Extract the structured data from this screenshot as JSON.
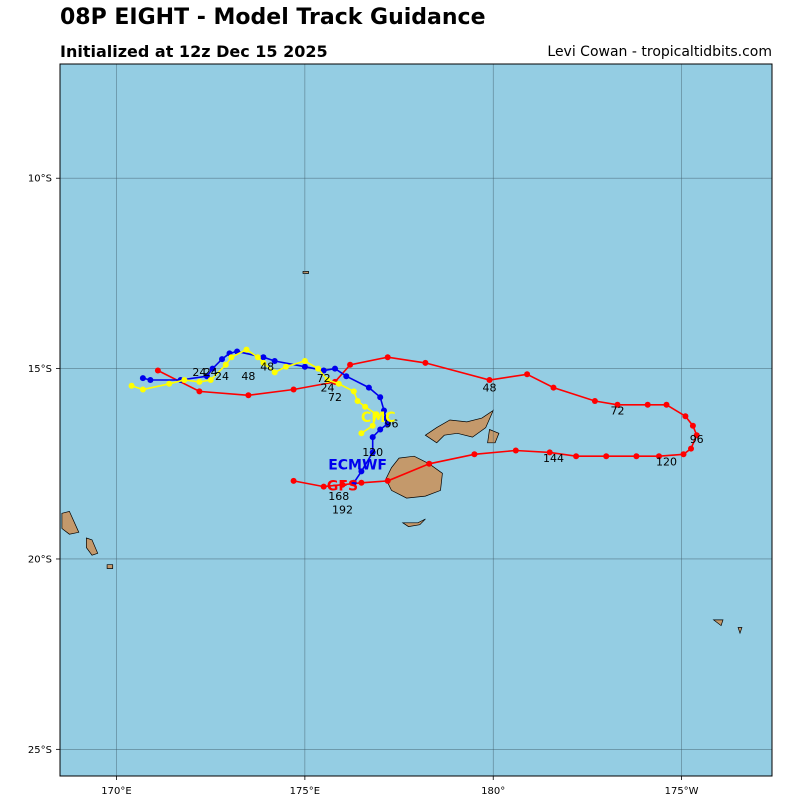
{
  "header": {
    "title": "08P EIGHT - Model Track Guidance",
    "subtitle": "Initialized at 12z Dec 15 2025",
    "credit": "Levi Cowan - tropicaltidbits.com"
  },
  "colors": {
    "ocean": "#94cde3",
    "land": "#c4996b",
    "grid": "#3d5a66",
    "gfs": "#ff0000",
    "ecmwf": "#0000ee",
    "cmc": "#ffff00"
  },
  "map": {
    "lon_range": [
      168.5,
      187.4
    ],
    "lat_range": [
      -25.7,
      -7.0
    ],
    "lon_ticks": [
      {
        "value": 170,
        "label": "170°E"
      },
      {
        "value": 175,
        "label": "175°E"
      },
      {
        "value": 180,
        "label": "180°"
      },
      {
        "value": 185,
        "label": "175°W"
      }
    ],
    "lat_ticks": [
      {
        "value": -10,
        "label": "10°S"
      },
      {
        "value": -15,
        "label": "15°S"
      },
      {
        "value": -20,
        "label": "20°S"
      },
      {
        "value": -25,
        "label": "25°S"
      }
    ],
    "islands": [
      {
        "name": "viti-levu",
        "points": [
          [
            177.3,
            -17.6
          ],
          [
            177.5,
            -17.35
          ],
          [
            177.9,
            -17.3
          ],
          [
            178.3,
            -17.5
          ],
          [
            178.65,
            -17.75
          ],
          [
            178.6,
            -18.2
          ],
          [
            178.2,
            -18.35
          ],
          [
            177.7,
            -18.4
          ],
          [
            177.3,
            -18.2
          ],
          [
            177.15,
            -17.9
          ]
        ]
      },
      {
        "name": "vanua-levu",
        "points": [
          [
            178.2,
            -16.75
          ],
          [
            178.5,
            -16.55
          ],
          [
            178.85,
            -16.35
          ],
          [
            179.3,
            -16.4
          ],
          [
            179.7,
            -16.3
          ],
          [
            180.0,
            -16.1
          ],
          [
            179.8,
            -16.55
          ],
          [
            179.45,
            -16.8
          ],
          [
            179.05,
            -16.7
          ],
          [
            178.7,
            -16.75
          ],
          [
            178.5,
            -16.95
          ]
        ]
      },
      {
        "name": "taveuni",
        "points": [
          [
            179.9,
            -16.6
          ],
          [
            180.15,
            -16.7
          ],
          [
            180.05,
            -16.95
          ],
          [
            179.85,
            -16.95
          ]
        ]
      },
      {
        "name": "kadavu",
        "points": [
          [
            177.6,
            -19.05
          ],
          [
            178.0,
            -19.05
          ],
          [
            178.2,
            -18.95
          ],
          [
            178.05,
            -19.1
          ],
          [
            177.75,
            -19.15
          ]
        ]
      },
      {
        "name": "vanuatu-1",
        "points": [
          [
            168.55,
            -18.8
          ],
          [
            168.75,
            -18.75
          ],
          [
            169.0,
            -19.3
          ],
          [
            168.75,
            -19.35
          ],
          [
            168.55,
            -19.2
          ]
        ]
      },
      {
        "name": "vanuatu-2",
        "points": [
          [
            169.2,
            -19.45
          ],
          [
            169.35,
            -19.5
          ],
          [
            169.5,
            -19.85
          ],
          [
            169.35,
            -19.9
          ],
          [
            169.2,
            -19.7
          ]
        ]
      },
      {
        "name": "vanuatu-3",
        "points": [
          [
            169.75,
            -20.15
          ],
          [
            169.9,
            -20.15
          ],
          [
            169.9,
            -20.25
          ],
          [
            169.75,
            -20.25
          ]
        ]
      },
      {
        "name": "ono-i-lau",
        "points": [
          [
            185.85,
            -21.6
          ],
          [
            186.1,
            -21.6
          ],
          [
            186.05,
            -21.75
          ]
        ]
      },
      {
        "name": "vava-u",
        "points": [
          [
            186.5,
            -21.8
          ],
          [
            186.6,
            -21.8
          ],
          [
            186.55,
            -21.95
          ]
        ]
      },
      {
        "name": "rotuma",
        "points": [
          [
            174.95,
            -12.45
          ],
          [
            175.1,
            -12.45
          ],
          [
            175.1,
            -12.5
          ],
          [
            174.95,
            -12.5
          ]
        ]
      }
    ]
  },
  "chart_data": {
    "type": "scatter",
    "title": "08P EIGHT - Model Track Guidance",
    "subtitle": "Initialized at 12z Dec 15 2025",
    "series": [
      {
        "name": "GFS",
        "color": "#ff0000",
        "label_pos": [
          176.0,
          -18.2
        ],
        "points": [
          [
            171.1,
            -15.05
          ],
          [
            172.2,
            -15.6
          ],
          [
            173.5,
            -15.7
          ],
          [
            174.7,
            -15.55
          ],
          [
            175.8,
            -15.35
          ],
          [
            176.2,
            -14.9
          ],
          [
            177.2,
            -14.7
          ],
          [
            178.2,
            -14.85
          ],
          [
            179.9,
            -15.3
          ],
          [
            180.9,
            -15.15
          ],
          [
            181.6,
            -15.5
          ],
          [
            182.7,
            -15.85
          ],
          [
            183.3,
            -15.95
          ],
          [
            184.1,
            -15.95
          ],
          [
            184.6,
            -15.95
          ],
          [
            185.1,
            -16.25
          ],
          [
            185.3,
            -16.5
          ],
          [
            185.4,
            -16.75
          ],
          [
            185.25,
            -17.1
          ],
          [
            185.05,
            -17.25
          ],
          [
            184.4,
            -17.3
          ],
          [
            183.8,
            -17.3
          ],
          [
            183.0,
            -17.3
          ],
          [
            182.2,
            -17.3
          ],
          [
            181.5,
            -17.2
          ],
          [
            180.6,
            -17.15
          ],
          [
            179.5,
            -17.25
          ],
          [
            178.3,
            -17.5
          ],
          [
            177.2,
            -17.95
          ],
          [
            176.5,
            -18.0
          ],
          [
            176.0,
            -18.05
          ],
          [
            175.5,
            -18.1
          ],
          [
            174.7,
            -17.95
          ]
        ],
        "hour_labels": [
          {
            "text": "24",
            "pos": [
              172.8,
              -15.3
            ]
          },
          {
            "text": "48",
            "pos": [
              179.9,
              -15.6
            ]
          },
          {
            "text": "72",
            "pos": [
              183.3,
              -16.2
            ]
          },
          {
            "text": "96",
            "pos": [
              185.4,
              -16.95
            ]
          },
          {
            "text": "120",
            "pos": [
              184.6,
              -17.55
            ]
          },
          {
            "text": "144",
            "pos": [
              181.6,
              -17.45
            ]
          },
          {
            "text": "168",
            "pos": [
              175.9,
              -18.45
            ]
          },
          {
            "text": "192",
            "pos": [
              176.0,
              -18.8
            ]
          }
        ]
      },
      {
        "name": "ECMWF",
        "color": "#0000ee",
        "label_pos": [
          176.4,
          -17.65
        ],
        "points": [
          [
            170.7,
            -15.25
          ],
          [
            170.9,
            -15.3
          ],
          [
            171.7,
            -15.3
          ],
          [
            172.4,
            -15.2
          ],
          [
            172.55,
            -15.0
          ],
          [
            172.8,
            -14.75
          ],
          [
            173.0,
            -14.6
          ],
          [
            173.2,
            -14.55
          ],
          [
            173.9,
            -14.7
          ],
          [
            174.2,
            -14.8
          ],
          [
            175.0,
            -14.95
          ],
          [
            175.5,
            -15.05
          ],
          [
            175.8,
            -15.0
          ],
          [
            176.1,
            -15.2
          ],
          [
            176.7,
            -15.5
          ],
          [
            177.0,
            -15.75
          ],
          [
            177.1,
            -16.1
          ],
          [
            177.15,
            -16.3
          ],
          [
            177.2,
            -16.45
          ],
          [
            177.0,
            -16.6
          ],
          [
            176.8,
            -16.8
          ],
          [
            176.8,
            -17.2
          ],
          [
            176.5,
            -17.7
          ],
          [
            176.3,
            -18.0
          ]
        ],
        "hour_labels": [
          {
            "text": "24",
            "pos": [
              172.5,
              -15.2
            ]
          },
          {
            "text": "48",
            "pos": [
              173.5,
              -15.3
            ]
          },
          {
            "text": "72",
            "pos": [
              175.5,
              -15.35
            ]
          },
          {
            "text": "96",
            "pos": [
              177.3,
              -16.55
            ]
          },
          {
            "text": "120",
            "pos": [
              176.8,
              -17.3
            ]
          }
        ]
      },
      {
        "name": "CMC",
        "color": "#ffff00",
        "label_pos": [
          176.95,
          -16.4
        ],
        "points": [
          [
            170.4,
            -15.45
          ],
          [
            170.7,
            -15.55
          ],
          [
            171.4,
            -15.4
          ],
          [
            171.8,
            -15.3
          ],
          [
            172.2,
            -15.35
          ],
          [
            172.5,
            -15.3
          ],
          [
            172.9,
            -14.9
          ],
          [
            173.05,
            -14.7
          ],
          [
            173.45,
            -14.5
          ],
          [
            173.75,
            -14.7
          ],
          [
            173.9,
            -14.85
          ],
          [
            174.2,
            -15.1
          ],
          [
            174.5,
            -14.95
          ],
          [
            175.0,
            -14.8
          ],
          [
            175.35,
            -15.0
          ],
          [
            175.6,
            -15.3
          ],
          [
            175.9,
            -15.4
          ],
          [
            176.3,
            -15.6
          ],
          [
            176.4,
            -15.85
          ],
          [
            176.6,
            -16.0
          ],
          [
            176.9,
            -16.2
          ],
          [
            176.8,
            -16.5
          ],
          [
            176.5,
            -16.7
          ]
        ],
        "hour_labels": [
          {
            "text": "24",
            "pos": [
              172.2,
              -15.2
            ]
          },
          {
            "text": "48",
            "pos": [
              174.0,
              -15.05
            ]
          },
          {
            "text": "24",
            "pos": [
              175.6,
              -15.6
            ]
          },
          {
            "text": "72",
            "pos": [
              175.8,
              -15.85
            ]
          }
        ]
      }
    ]
  }
}
